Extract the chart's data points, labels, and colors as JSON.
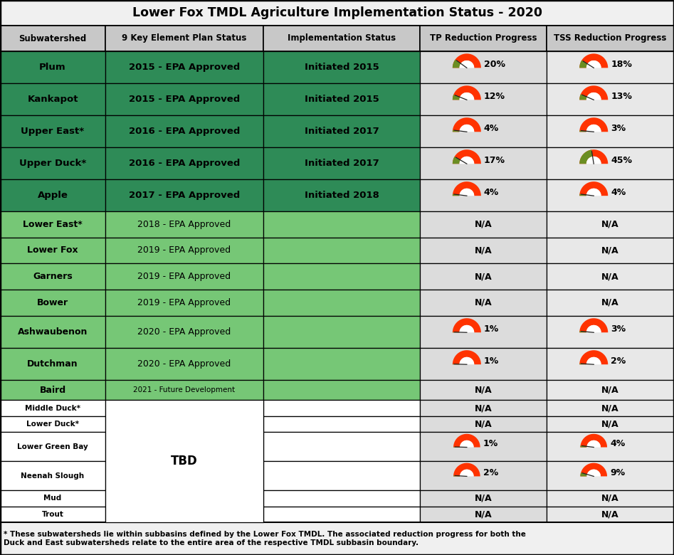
{
  "title": "Lower Fox TMDL Agriculture Implementation Status - 2020",
  "col_headers": [
    "Subwatershed",
    "9 Key Element Plan Status",
    "Implementation Status",
    "TP Reduction Progress",
    "TSS Reduction Progress"
  ],
  "rows": [
    {
      "name": "Plum",
      "plan_status": "2015 - EPA Approved",
      "impl_status": "Initiated 2015",
      "tp_value": 20,
      "tss_value": 18,
      "row_color": "dark_green"
    },
    {
      "name": "Kankapot",
      "plan_status": "2015 - EPA Approved",
      "impl_status": "Initiated 2015",
      "tp_value": 12,
      "tss_value": 13,
      "row_color": "dark_green"
    },
    {
      "name": "Upper East*",
      "plan_status": "2016 - EPA Approved",
      "impl_status": "Initiated 2017",
      "tp_value": 4,
      "tss_value": 3,
      "row_color": "dark_green"
    },
    {
      "name": "Upper Duck*",
      "plan_status": "2016 - EPA Approved",
      "impl_status": "Initiated 2017",
      "tp_value": 17,
      "tss_value": 45,
      "row_color": "dark_green"
    },
    {
      "name": "Apple",
      "plan_status": "2017 - EPA Approved",
      "impl_status": "Initiated 2018",
      "tp_value": 4,
      "tss_value": 4,
      "row_color": "dark_green"
    },
    {
      "name": "Lower East*",
      "plan_status": "2018 - EPA Approved",
      "impl_status": "",
      "tp_value": null,
      "tss_value": null,
      "row_color": "light_green"
    },
    {
      "name": "Lower Fox",
      "plan_status": "2019 - EPA Approved",
      "impl_status": "",
      "tp_value": null,
      "tss_value": null,
      "row_color": "light_green"
    },
    {
      "name": "Garners",
      "plan_status": "2019 - EPA Approved",
      "impl_status": "",
      "tp_value": null,
      "tss_value": null,
      "row_color": "light_green"
    },
    {
      "name": "Bower",
      "plan_status": "2019 - EPA Approved",
      "impl_status": "",
      "tp_value": null,
      "tss_value": null,
      "row_color": "light_green"
    },
    {
      "name": "Ashwaubenon",
      "plan_status": "2020 - EPA Approved",
      "impl_status": "",
      "tp_value": 1,
      "tss_value": 3,
      "row_color": "light_green"
    },
    {
      "name": "Dutchman",
      "plan_status": "2020 - EPA Approved",
      "impl_status": "",
      "tp_value": 1,
      "tss_value": 2,
      "row_color": "light_green"
    },
    {
      "name": "Baird",
      "plan_status": "2021 - Future Development",
      "impl_status": "",
      "tp_value": null,
      "tss_value": null,
      "row_color": "light_green"
    },
    {
      "name": "Middle Duck*",
      "plan_status": "TBD",
      "impl_status": "",
      "tp_value": null,
      "tss_value": null,
      "row_color": "white"
    },
    {
      "name": "Lower Duck*",
      "plan_status": "TBD",
      "impl_status": "",
      "tp_value": null,
      "tss_value": null,
      "row_color": "white"
    },
    {
      "name": "Lower Green Bay",
      "plan_status": "TBD",
      "impl_status": "",
      "tp_value": 1,
      "tss_value": 4,
      "row_color": "white"
    },
    {
      "name": "Neenah Slough",
      "plan_status": "TBD",
      "impl_status": "",
      "tp_value": 2,
      "tss_value": 9,
      "row_color": "white"
    },
    {
      "name": "Mud",
      "plan_status": "TBD",
      "impl_status": "",
      "tp_value": null,
      "tss_value": null,
      "row_color": "white"
    },
    {
      "name": "Trout",
      "plan_status": "TBD",
      "impl_status": "",
      "tp_value": null,
      "tss_value": null,
      "row_color": "white"
    }
  ],
  "tbd_rows": [
    12,
    13,
    14,
    15,
    16,
    17
  ],
  "colors": {
    "dark_green": "#2E8B57",
    "light_green": "#76C776",
    "white": "#FFFFFF",
    "header_bg": "#C8C8C8",
    "title_bg": "#F0F0F0",
    "gauge_red": "#FF3300",
    "gauge_green": "#6B8E23",
    "tp_bg": "#DCDCDC",
    "tss_bg": "#E8E8E8",
    "border": "#000000"
  },
  "footnote": "* These subwatersheds lie within subbasins defined by the Lower Fox TMDL. The associated reduction progress for both the\nDuck and East subwatersheds relate to the entire area of the respective TMDL subbasin boundary."
}
